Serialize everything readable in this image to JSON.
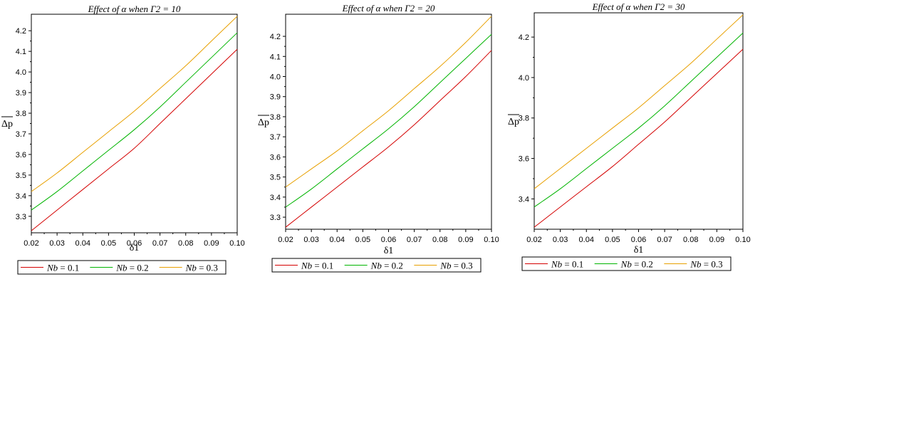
{
  "chart_data": [
    {
      "type": "line",
      "title": "Effect of α when Γ2 = 10",
      "xlabel": "δ1",
      "ylabel": "Δp",
      "xlim": [
        0.02,
        0.1
      ],
      "ylim": [
        3.22,
        4.28
      ],
      "x_ticks": [
        "0.02",
        "0.03",
        "0.04",
        "0.05",
        "0.06",
        "0.07",
        "0.08",
        "0.09",
        "0.10"
      ],
      "y_ticks": [
        "3.3",
        "3.4",
        "3.5",
        "3.6",
        "3.7",
        "3.8",
        "3.9",
        "4.0",
        "4.1",
        "4.2"
      ],
      "legend_position": "bottom",
      "grid": false,
      "x": [
        0.02,
        0.03,
        0.04,
        0.05,
        0.06,
        0.07,
        0.08,
        0.09,
        0.1
      ],
      "series": [
        {
          "name": "Nb = 0.1",
          "color": "#d40000",
          "values": [
            3.23,
            3.33,
            3.43,
            3.53,
            3.63,
            3.75,
            3.87,
            3.99,
            4.11
          ]
        },
        {
          "name": "Nb = 0.2",
          "color": "#00b400",
          "values": [
            3.33,
            3.42,
            3.52,
            3.62,
            3.72,
            3.83,
            3.95,
            4.07,
            4.19
          ]
        },
        {
          "name": "Nb = 0.3",
          "color": "#e8a000",
          "values": [
            3.42,
            3.51,
            3.61,
            3.71,
            3.81,
            3.92,
            4.03,
            4.15,
            4.27
          ]
        }
      ]
    },
    {
      "type": "line",
      "title": "Effect of α when Γ2 = 20",
      "xlabel": "δ1",
      "ylabel": "Δp",
      "xlim": [
        0.02,
        0.1
      ],
      "ylim": [
        3.24,
        4.31
      ],
      "x_ticks": [
        "0.02",
        "0.03",
        "0.04",
        "0.05",
        "0.06",
        "0.07",
        "0.08",
        "0.09",
        "0.10"
      ],
      "y_ticks": [
        "3.3",
        "3.4",
        "3.5",
        "3.6",
        "3.7",
        "3.8",
        "3.9",
        "4.0",
        "4.1",
        "4.2"
      ],
      "legend_position": "bottom",
      "grid": false,
      "x": [
        0.02,
        0.03,
        0.04,
        0.05,
        0.06,
        0.07,
        0.08,
        0.09,
        0.1
      ],
      "series": [
        {
          "name": "Nb = 0.1",
          "color": "#d40000",
          "values": [
            3.25,
            3.35,
            3.45,
            3.55,
            3.65,
            3.76,
            3.88,
            4.0,
            4.13
          ]
        },
        {
          "name": "Nb = 0.2",
          "color": "#00b400",
          "values": [
            3.35,
            3.44,
            3.54,
            3.64,
            3.74,
            3.85,
            3.97,
            4.09,
            4.21
          ]
        },
        {
          "name": "Nb = 0.3",
          "color": "#e8a000",
          "values": [
            3.45,
            3.54,
            3.63,
            3.73,
            3.83,
            3.94,
            4.05,
            4.17,
            4.3
          ]
        }
      ]
    },
    {
      "type": "line",
      "title": "Effect of α when Γ2 = 30",
      "xlabel": "δ1",
      "ylabel": "Δp",
      "xlim": [
        0.02,
        0.1
      ],
      "ylim": [
        3.25,
        4.32
      ],
      "x_ticks": [
        "0.02",
        "0.03",
        "0.04",
        "0.05",
        "0.06",
        "0.07",
        "0.08",
        "0.09",
        "0.10"
      ],
      "y_ticks": [
        "3.4",
        "3.6",
        "3.8",
        "4.0",
        "4.2"
      ],
      "legend_position": "bottom",
      "grid": false,
      "x": [
        0.02,
        0.03,
        0.04,
        0.05,
        0.06,
        0.07,
        0.08,
        0.09,
        0.1
      ],
      "series": [
        {
          "name": "Nb = 0.1",
          "color": "#d40000",
          "values": [
            3.26,
            3.36,
            3.46,
            3.56,
            3.67,
            3.78,
            3.9,
            4.02,
            4.14
          ]
        },
        {
          "name": "Nb = 0.2",
          "color": "#00b400",
          "values": [
            3.36,
            3.45,
            3.55,
            3.65,
            3.75,
            3.86,
            3.98,
            4.1,
            4.22
          ]
        },
        {
          "name": "Nb = 0.3",
          "color": "#e8a000",
          "values": [
            3.45,
            3.55,
            3.65,
            3.75,
            3.85,
            3.96,
            4.07,
            4.19,
            4.31
          ]
        }
      ]
    }
  ]
}
